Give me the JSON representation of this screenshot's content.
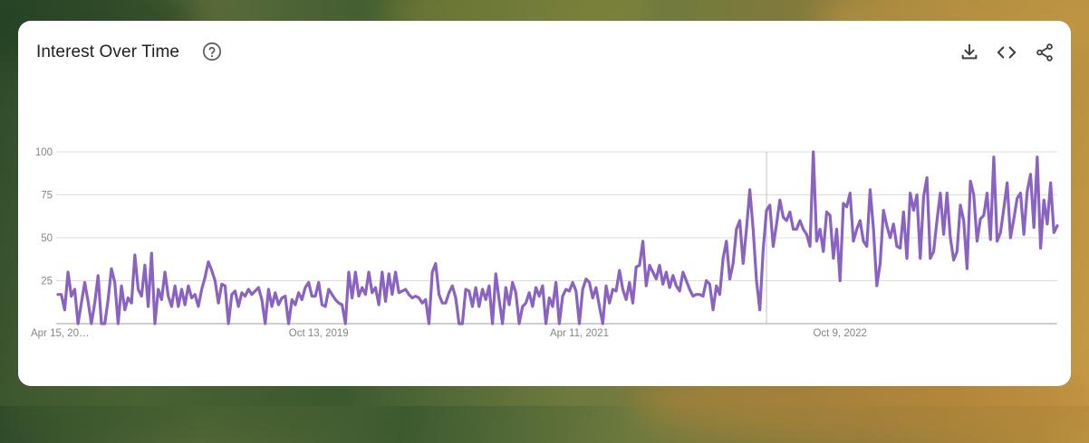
{
  "card": {
    "title": "Interest Over Time",
    "help_icon": "help-circle-icon",
    "tools": [
      {
        "name": "download-icon",
        "label": "Download"
      },
      {
        "name": "embed-icon",
        "label": "Embed"
      },
      {
        "name": "share-icon",
        "label": "Share"
      }
    ]
  },
  "colors": {
    "line": "#8a63c0",
    "grid": "#dadce0",
    "axis": "#9aa0a6",
    "tick_text": "#80868b",
    "marker": "#bdc1c6"
  },
  "chart_data": {
    "type": "line",
    "title": "Interest Over Time",
    "xlabel": "",
    "ylabel": "",
    "ylim": [
      0,
      100
    ],
    "y_ticks": [
      25,
      50,
      75,
      100
    ],
    "x_tick_labels": [
      "Apr 15, 20…",
      "Oct 13, 2019",
      "Apr 11, 2021",
      "Oct 9, 2022"
    ],
    "grid": true,
    "series": [
      {
        "values": [
          17,
          17,
          8,
          30,
          16,
          20,
          0,
          12,
          24,
          13,
          0,
          12,
          28,
          0,
          0,
          14,
          32,
          24,
          0,
          22,
          8,
          15,
          12,
          40,
          20,
          16,
          34,
          10,
          41,
          0,
          20,
          14,
          30,
          16,
          10,
          22,
          10,
          20,
          11,
          22,
          15,
          17,
          10,
          20,
          27,
          36,
          31,
          25,
          12,
          23,
          22,
          0,
          17,
          19,
          10,
          18,
          16,
          20,
          17,
          19,
          21,
          14,
          0,
          20,
          10,
          18,
          11,
          15,
          16,
          0,
          14,
          11,
          18,
          14,
          21,
          24,
          16,
          16,
          24,
          11,
          10,
          20,
          17,
          14,
          12,
          11,
          0,
          30,
          15,
          30,
          16,
          21,
          17,
          30,
          18,
          21,
          11,
          30,
          13,
          29,
          17,
          30,
          18,
          19,
          20,
          17,
          15,
          16,
          15,
          12,
          14,
          0,
          30,
          35,
          17,
          12,
          12,
          18,
          22,
          15,
          0,
          0,
          20,
          19,
          10,
          21,
          10,
          20,
          14,
          22,
          0,
          29,
          14,
          0,
          21,
          11,
          24,
          18,
          0,
          10,
          12,
          18,
          10,
          21,
          16,
          22,
          0,
          15,
          10,
          24,
          0,
          16,
          20,
          19,
          24,
          19,
          0,
          20,
          26,
          24,
          15,
          21,
          10,
          0,
          22,
          12,
          20,
          19,
          31,
          20,
          14,
          24,
          12,
          33,
          34,
          48,
          22,
          34,
          30,
          26,
          34,
          23,
          30,
          21,
          28,
          22,
          19,
          30,
          25,
          20,
          16,
          17,
          17,
          16,
          25,
          23,
          8,
          22,
          17,
          38,
          48,
          26,
          35,
          55,
          60,
          35,
          55,
          78,
          55,
          25,
          8,
          43,
          66,
          69,
          45,
          58,
          72,
          62,
          60,
          65,
          55,
          55,
          60,
          55,
          52,
          45,
          100,
          48,
          55,
          42,
          65,
          63,
          38,
          55,
          25,
          70,
          68,
          76,
          48,
          55,
          60,
          48,
          45,
          78,
          55,
          22,
          35,
          66,
          57,
          50,
          58,
          45,
          44,
          65,
          38,
          76,
          66,
          75,
          38,
          74,
          85,
          38,
          42,
          60,
          76,
          52,
          76,
          50,
          37,
          42,
          69,
          60,
          32,
          83,
          75,
          48,
          61,
          63,
          76,
          49,
          97,
          48,
          53,
          67,
          82,
          50,
          61,
          73,
          76,
          52,
          77,
          87,
          56,
          97,
          44,
          72,
          58,
          82,
          53,
          57
        ]
      }
    ]
  }
}
